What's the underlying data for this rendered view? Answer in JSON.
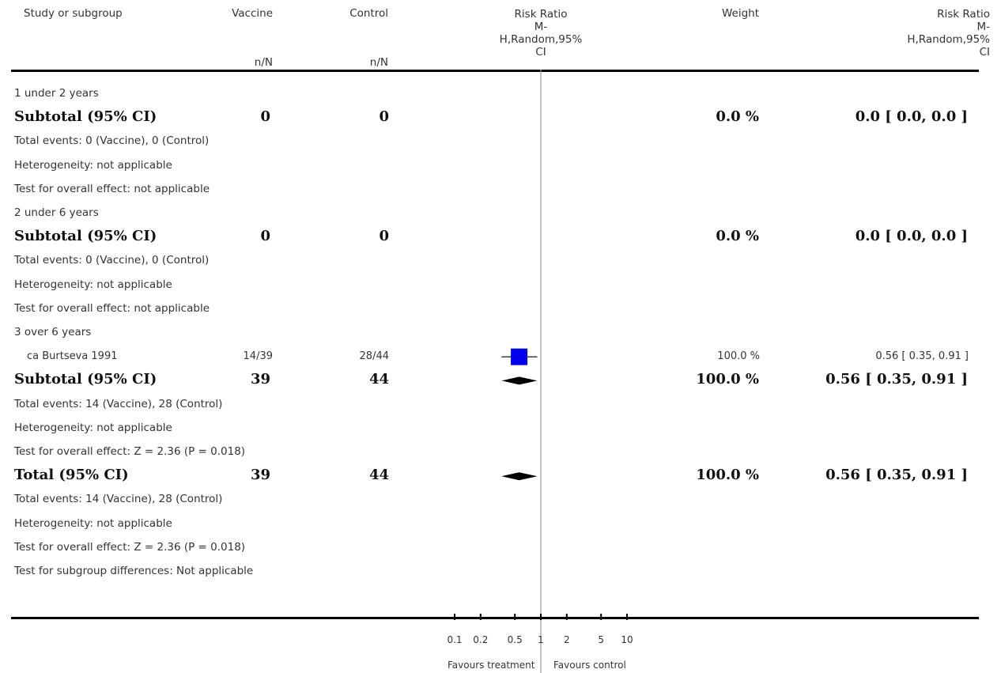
{
  "columns": {
    "study": "Study or subgroup",
    "vaccine": "Vaccine",
    "vaccine_sub": "n/N",
    "control": "Control",
    "control_sub": "n/N",
    "rr_plot": "Risk Ratio\nM-\nH,Random,95%\nCI",
    "weight": "Weight",
    "rr_value": "Risk Ratio\nM-\nH,Random,95%\nCI"
  },
  "rows": [
    {
      "kind": "group",
      "label": "1 under 2 years"
    },
    {
      "kind": "subtotal",
      "label": "Subtotal (95% CI)",
      "vaccine": "0",
      "control": "0",
      "weight": "0.0 %",
      "ci": "0.0 [ 0.0, 0.0 ]"
    },
    {
      "kind": "note",
      "label": "Total events: 0 (Vaccine), 0 (Control)"
    },
    {
      "kind": "note",
      "label": "Heterogeneity: not applicable"
    },
    {
      "kind": "note",
      "label": "Test for overall effect: not applicable"
    },
    {
      "kind": "group",
      "label": "2 under 6 years"
    },
    {
      "kind": "subtotal",
      "label": "Subtotal (95% CI)",
      "vaccine": "0",
      "control": "0",
      "weight": "0.0 %",
      "ci": "0.0 [ 0.0, 0.0 ]"
    },
    {
      "kind": "note",
      "label": "Total events: 0 (Vaccine), 0 (Control)"
    },
    {
      "kind": "note",
      "label": "Heterogeneity: not applicable"
    },
    {
      "kind": "note",
      "label": "Test for overall effect: not applicable"
    },
    {
      "kind": "group",
      "label": "3 over 6 years"
    },
    {
      "kind": "study",
      "label": "ca Burtseva 1991",
      "vaccine": "14/39",
      "control": "28/44",
      "weight": "100.0 %",
      "ci": "0.56 [ 0.35, 0.91 ]",
      "rr": 0.56,
      "lo": 0.35,
      "hi": 0.91
    },
    {
      "kind": "subtotal",
      "label": "Subtotal (95% CI)",
      "vaccine": "39",
      "control": "44",
      "weight": "100.0 %",
      "ci": "0.56 [ 0.35, 0.91 ]",
      "rr": 0.56,
      "lo": 0.35,
      "hi": 0.91
    },
    {
      "kind": "note",
      "label": "Total events: 14 (Vaccine), 28 (Control)"
    },
    {
      "kind": "note",
      "label": "Heterogeneity: not applicable"
    },
    {
      "kind": "note",
      "label": "Test for overall effect: Z = 2.36 (P = 0.018)"
    },
    {
      "kind": "subtotal",
      "label": "Total (95% CI)",
      "vaccine": "39",
      "control": "44",
      "weight": "100.0 %",
      "ci": "0.56 [ 0.35, 0.91 ]",
      "rr": 0.56,
      "lo": 0.35,
      "hi": 0.91
    },
    {
      "kind": "note",
      "label": "Total events: 14 (Vaccine), 28 (Control)"
    },
    {
      "kind": "note",
      "label": "Heterogeneity: not applicable"
    },
    {
      "kind": "note",
      "label": "Test for overall effect: Z = 2.36 (P = 0.018)"
    },
    {
      "kind": "note",
      "label": "Test for subgroup differences: Not applicable"
    }
  ],
  "chart_data": {
    "type": "forest",
    "scale": "log",
    "xlim": [
      0.1,
      10
    ],
    "ticks": [
      {
        "value": 0.1,
        "label": "0.1"
      },
      {
        "value": 0.2,
        "label": "0.2"
      },
      {
        "value": 0.5,
        "label": "0.5"
      },
      {
        "value": 1,
        "label": "1"
      },
      {
        "value": 2,
        "label": "2"
      },
      {
        "value": 5,
        "label": "5"
      },
      {
        "value": 10,
        "label": "10"
      }
    ],
    "favours_left": "Favours treatment",
    "favours_right": "Favours control",
    "study_color": "#0000ee",
    "estimates": [
      {
        "label": "ca Burtseva 1991",
        "shape": "square",
        "rr": 0.56,
        "lo": 0.35,
        "hi": 0.91,
        "weight": 100.0
      },
      {
        "label": "Subtotal (95% CI)",
        "shape": "diamond",
        "rr": 0.56,
        "lo": 0.35,
        "hi": 0.91
      },
      {
        "label": "Total (95% CI)",
        "shape": "diamond",
        "rr": 0.56,
        "lo": 0.35,
        "hi": 0.91
      }
    ]
  }
}
